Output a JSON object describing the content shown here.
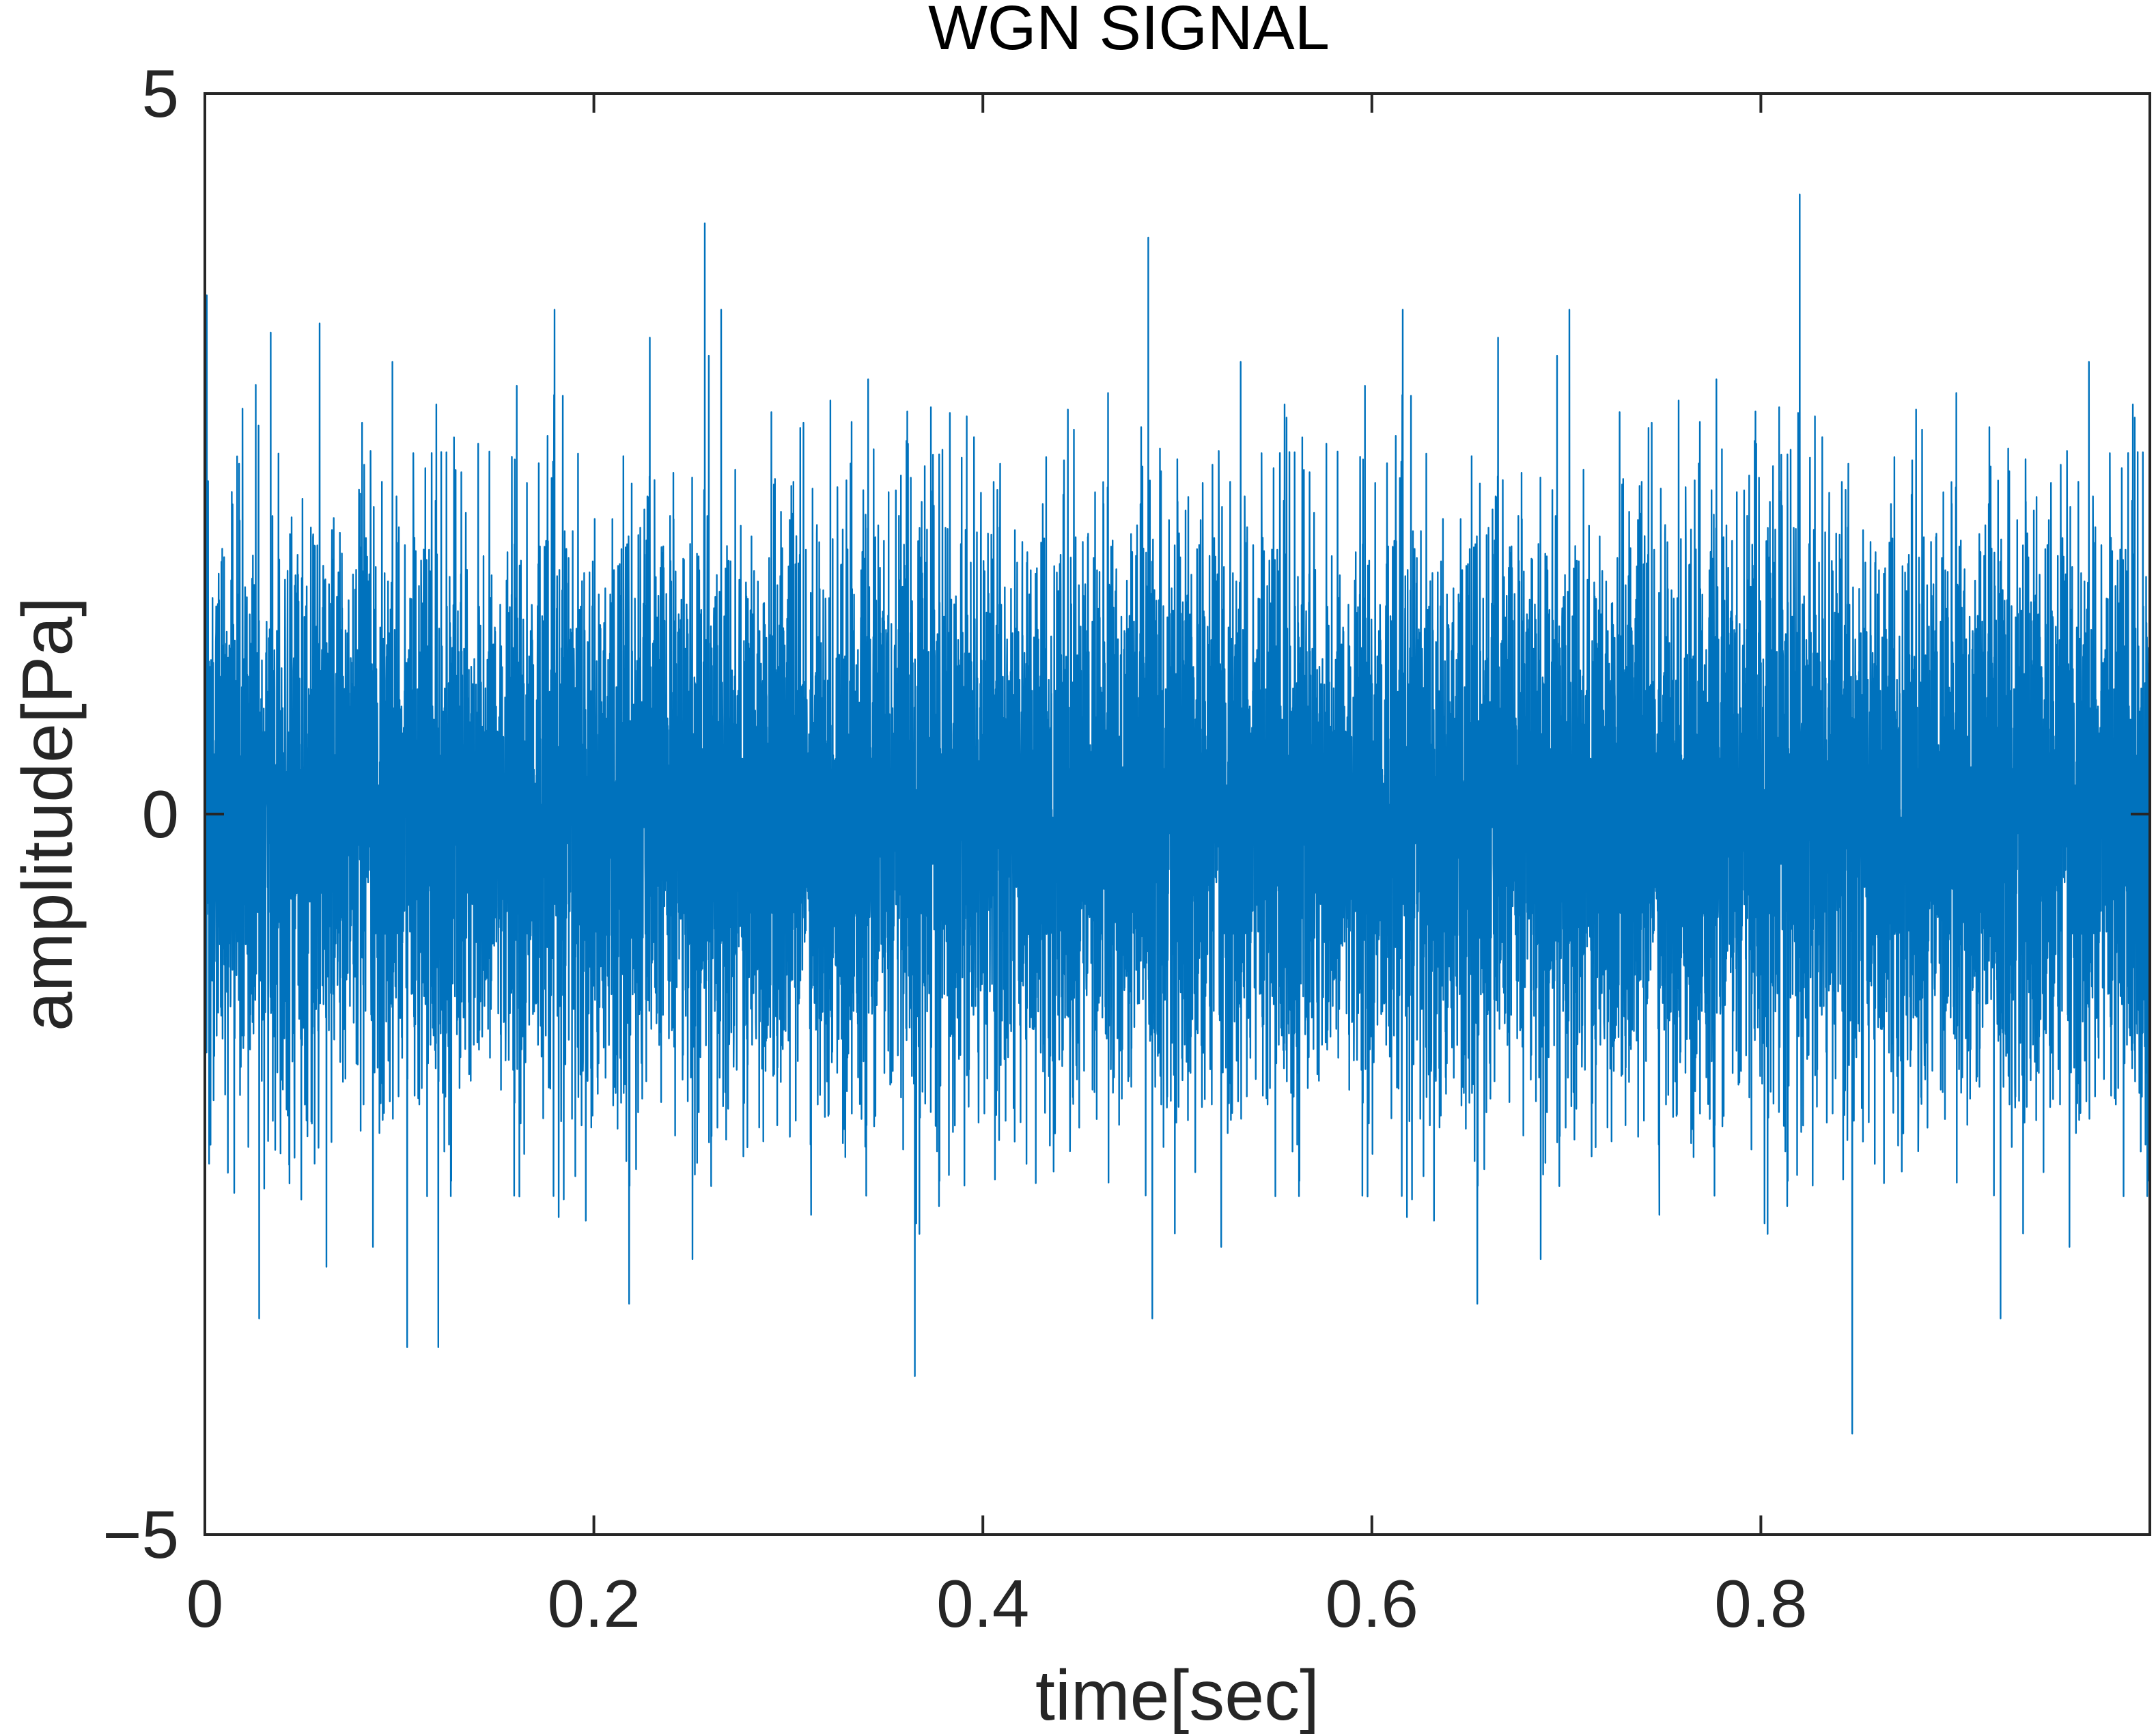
{
  "chart_data": {
    "type": "line",
    "title": "WGN SIGNAL",
    "xlabel": "time[sec]",
    "ylabel": "amplitude[Pa]",
    "xlim": [
      0,
      1
    ],
    "ylim": [
      -5,
      5
    ],
    "x_ticks": [
      0,
      0.2,
      0.4,
      0.6,
      0.8
    ],
    "x_tick_labels": [
      "0",
      "0.2",
      "0.4",
      "0.6",
      "0.8"
    ],
    "y_ticks": [
      -5,
      0,
      5
    ],
    "y_tick_labels": [
      "−5",
      "0",
      "5"
    ],
    "grid": false,
    "legend": "none",
    "series": [
      {
        "color": "#0072BD",
        "description_of_values": "white Gaussian noise, mean approximately 0, standard deviation approximately 1, sampled densely over 0 to 1 sec",
        "mean": 0,
        "std": 1,
        "peaks": [
          {
            "x": 0.001,
            "y": 3.6
          },
          {
            "x": 0.257,
            "y": 4.1
          },
          {
            "x": 0.485,
            "y": 4.0
          },
          {
            "x": 0.82,
            "y": 4.3
          },
          {
            "x": 0.104,
            "y": -3.7
          },
          {
            "x": 0.12,
            "y": -3.7
          },
          {
            "x": 0.365,
            "y": -3.9
          },
          {
            "x": 0.847,
            "y": -4.3
          }
        ]
      }
    ]
  }
}
